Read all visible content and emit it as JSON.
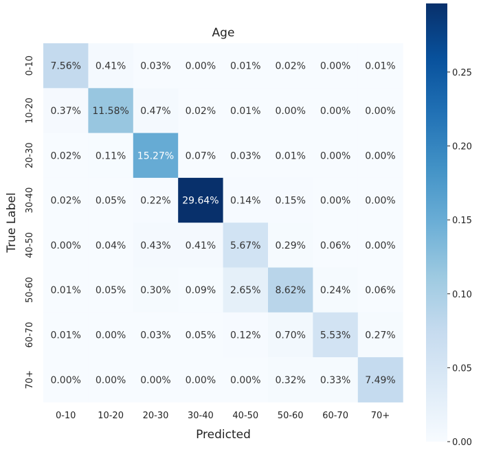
{
  "chart_data": {
    "type": "heatmap",
    "title": "Age",
    "xlabel": "Predicted",
    "ylabel": "True Label",
    "x_categories": [
      "0-10",
      "10-20",
      "20-30",
      "30-40",
      "40-50",
      "50-60",
      "60-70",
      "70+"
    ],
    "y_categories": [
      "0-10",
      "10-20",
      "20-30",
      "30-40",
      "40-50",
      "50-60",
      "60-70",
      "70+"
    ],
    "values": [
      [
        0.0756,
        0.0041,
        0.0003,
        0.0,
        0.0001,
        0.0002,
        0.0,
        0.0001
      ],
      [
        0.0037,
        0.1158,
        0.0047,
        0.0002,
        0.0001,
        0.0,
        0.0,
        0.0
      ],
      [
        0.0002,
        0.0011,
        0.1527,
        0.0007,
        0.0003,
        0.0001,
        0.0,
        0.0
      ],
      [
        0.0002,
        0.0005,
        0.0022,
        0.2964,
        0.0014,
        0.0015,
        0.0,
        0.0
      ],
      [
        0.0,
        0.0004,
        0.0043,
        0.0041,
        0.0567,
        0.0029,
        0.0006,
        0.0
      ],
      [
        0.0001,
        0.0005,
        0.003,
        0.0009,
        0.0265,
        0.0862,
        0.0024,
        0.0006
      ],
      [
        0.0001,
        0.0,
        0.0003,
        0.0005,
        0.0012,
        0.007,
        0.0553,
        0.0027
      ],
      [
        0.0,
        0.0,
        0.0,
        0.0,
        0.0,
        0.0032,
        0.0033,
        0.0749
      ]
    ],
    "annotations": [
      [
        "7.56%",
        "0.41%",
        "0.03%",
        "0.00%",
        "0.01%",
        "0.02%",
        "0.00%",
        "0.01%"
      ],
      [
        "0.37%",
        "11.58%",
        "0.47%",
        "0.02%",
        "0.01%",
        "0.00%",
        "0.00%",
        "0.00%"
      ],
      [
        "0.02%",
        "0.11%",
        "15.27%",
        "0.07%",
        "0.03%",
        "0.01%",
        "0.00%",
        "0.00%"
      ],
      [
        "0.02%",
        "0.05%",
        "0.22%",
        "29.64%",
        "0.14%",
        "0.15%",
        "0.00%",
        "0.00%"
      ],
      [
        "0.00%",
        "0.04%",
        "0.43%",
        "0.41%",
        "5.67%",
        "0.29%",
        "0.06%",
        "0.00%"
      ],
      [
        "0.01%",
        "0.05%",
        "0.30%",
        "0.09%",
        "2.65%",
        "8.62%",
        "0.24%",
        "0.06%"
      ],
      [
        "0.01%",
        "0.00%",
        "0.03%",
        "0.05%",
        "0.12%",
        "0.70%",
        "5.53%",
        "0.27%"
      ],
      [
        "0.00%",
        "0.00%",
        "0.00%",
        "0.00%",
        "0.00%",
        "0.32%",
        "0.33%",
        "7.49%"
      ]
    ],
    "colorbar": {
      "colormap": "Blues",
      "range": [
        0,
        0.2964
      ],
      "ticks": [
        0.0,
        0.05,
        0.1,
        0.15,
        0.2,
        0.25
      ],
      "tick_labels": [
        "0.00",
        "0.05",
        "0.10",
        "0.15",
        "0.20",
        "0.25"
      ]
    },
    "grid": false,
    "colors": [
      "#f7fbff",
      "#deebf7",
      "#c6dbef",
      "#9ecae1",
      "#6baed6",
      "#4292c6",
      "#2171b5",
      "#08519c",
      "#08306b"
    ]
  }
}
